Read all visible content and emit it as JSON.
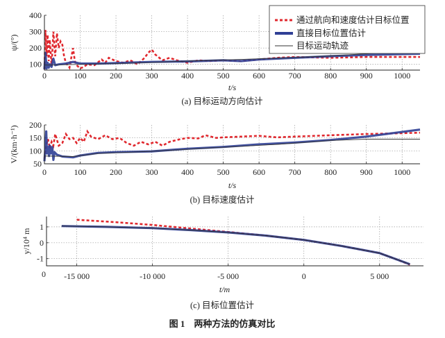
{
  "colors": {
    "red": "#e0282e",
    "blue": "#2f3f95",
    "truth": "#333333",
    "grid": "#999999"
  },
  "legend": {
    "position": "top-right",
    "items": [
      "通过航向和速度估计目标位置",
      "直接目标位置估计",
      "目标运动轨迹"
    ]
  },
  "figure_title": "图 1　两种方法的仿真对比",
  "chart_data": [
    {
      "type": "line",
      "caption": "(a) 目标运动方向估计",
      "xlabel": "t/s",
      "ylabel": "ψ/(°)",
      "xlim": [
        0,
        1050
      ],
      "ylim": [
        65,
        400
      ],
      "xticks": [
        0,
        100,
        200,
        300,
        400,
        500,
        600,
        700,
        800,
        900,
        1000
      ],
      "yticks": [
        100,
        200,
        300,
        400
      ],
      "grid": true,
      "series": [
        {
          "name": "通过航向和速度估计目标位置",
          "style": "dashed",
          "x": [
            0,
            3,
            6,
            9,
            12,
            15,
            20,
            25,
            30,
            35,
            40,
            45,
            50,
            55,
            60,
            70,
            80,
            85,
            90,
            100,
            110,
            120,
            140,
            160,
            170,
            180,
            200,
            220,
            240,
            260,
            280,
            290,
            300,
            310,
            330,
            350,
            370,
            400,
            430,
            460,
            500,
            550,
            600,
            650,
            700,
            800,
            900,
            1050
          ],
          "y": [
            70,
            310,
            150,
            280,
            120,
            250,
            90,
            300,
            150,
            290,
            200,
            240,
            220,
            150,
            110,
            80,
            200,
            120,
            95,
            75,
            85,
            100,
            95,
            130,
            110,
            140,
            120,
            110,
            125,
            100,
            140,
            170,
            190,
            160,
            125,
            140,
            125,
            110,
            125,
            120,
            125,
            120,
            130,
            140,
            145,
            140,
            145,
            145
          ]
        },
        {
          "name": "直接目标位置估计",
          "style": "solid",
          "x": [
            0,
            3,
            6,
            9,
            12,
            15,
            20,
            25,
            30,
            40,
            60,
            80,
            100,
            150,
            200,
            300,
            400,
            500,
            550,
            600,
            700,
            800,
            900,
            1050
          ],
          "y": [
            70,
            170,
            75,
            110,
            80,
            100,
            85,
            135,
            95,
            100,
            105,
            115,
            105,
            105,
            108,
            115,
            118,
            125,
            120,
            130,
            140,
            150,
            158,
            165
          ]
        },
        {
          "name": "目标运动轨迹",
          "style": "thin",
          "x": [
            0,
            100,
            200,
            300,
            400,
            500,
            600,
            700,
            800,
            900,
            1050
          ],
          "y": [
            95,
            100,
            105,
            112,
            120,
            127,
            134,
            142,
            152,
            165,
            185
          ]
        }
      ]
    },
    {
      "type": "line",
      "caption": "(b) 目标速度估计",
      "xlabel": "t/s",
      "ylabel": "V/(km·h⁻¹)",
      "xlim": [
        0,
        1050
      ],
      "ylim": [
        50,
        200
      ],
      "xticks": [
        0,
        100,
        200,
        300,
        400,
        500,
        600,
        700,
        800,
        900,
        1000
      ],
      "yticks": [
        50,
        100,
        150,
        200
      ],
      "grid": true,
      "series": [
        {
          "name": "通过航向和速度估计目标位置",
          "style": "dashed",
          "x": [
            0,
            5,
            10,
            15,
            20,
            25,
            30,
            40,
            50,
            60,
            70,
            80,
            90,
            100,
            110,
            120,
            130,
            150,
            170,
            190,
            210,
            230,
            250,
            270,
            290,
            310,
            330,
            350,
            380,
            400,
            430,
            450,
            480,
            500,
            550,
            600,
            650,
            700,
            800,
            900,
            1000,
            1050
          ],
          "y": [
            70,
            120,
            145,
            110,
            135,
            120,
            165,
            120,
            130,
            165,
            145,
            150,
            130,
            150,
            135,
            175,
            155,
            145,
            160,
            145,
            150,
            130,
            120,
            135,
            125,
            135,
            120,
            135,
            145,
            150,
            148,
            160,
            150,
            152,
            155,
            158,
            152,
            155,
            160,
            165,
            168,
            170
          ]
        },
        {
          "name": "直接目标位置估计",
          "style": "solid",
          "x": [
            0,
            3,
            5,
            7,
            10,
            13,
            15,
            18,
            22,
            25,
            28,
            35,
            50,
            80,
            100,
            150,
            200,
            300,
            400,
            500,
            600,
            700,
            800,
            900,
            1050
          ],
          "y": [
            60,
            120,
            175,
            90,
            115,
            80,
            120,
            90,
            115,
            65,
            95,
            85,
            78,
            75,
            82,
            92,
            95,
            98,
            108,
            115,
            125,
            132,
            142,
            155,
            182
          ]
        },
        {
          "name": "目标运动轨迹",
          "style": "thin",
          "x": [
            0,
            80,
            150,
            300,
            450,
            650,
            800,
            900,
            1050
          ],
          "y": [
            80,
            78,
            90,
            98,
            110,
            125,
            140,
            145,
            145
          ]
        }
      ]
    },
    {
      "type": "line",
      "caption": "(c) 目标位置估计",
      "xlabel": "t/m",
      "ylabel": "y/10⁴ m",
      "xlim": [
        -17000,
        7900
      ],
      "ylim": [
        -1.45,
        1.65
      ],
      "xticks": [
        -15000,
        -10000,
        -5000,
        0,
        5000
      ],
      "xtick_labels": [
        "-15 000",
        "-10 000",
        "-5 000",
        "0",
        "5 000"
      ],
      "yticks": [
        -1,
        0,
        1
      ],
      "origin_label": "0",
      "grid": true,
      "series": [
        {
          "name": "通过航向和速度估计目标位置",
          "style": "dashed",
          "x": [
            -15000,
            -12500,
            -10000,
            -7500,
            -5000,
            -2500,
            0,
            2500,
            5000,
            6000,
            7000
          ],
          "y": [
            1.45,
            1.3,
            1.12,
            0.9,
            0.68,
            0.45,
            0.18,
            -0.2,
            -0.65,
            -1.0,
            -1.38
          ]
        },
        {
          "name": "直接目标位置估计",
          "style": "solid",
          "x": [
            -16000,
            -13000,
            -10000,
            -7500,
            -5000,
            -2500,
            0,
            2500,
            5000,
            6000,
            7000
          ],
          "y": [
            1.05,
            1.0,
            0.92,
            0.8,
            0.65,
            0.45,
            0.18,
            -0.2,
            -0.65,
            -1.0,
            -1.35
          ]
        },
        {
          "name": "目标运动轨迹",
          "style": "thin",
          "x": [
            -16000,
            -13000,
            -10000,
            -7500,
            -5000,
            -2500,
            0,
            2500,
            5000,
            6000,
            7000
          ],
          "y": [
            1.05,
            1.0,
            0.92,
            0.8,
            0.65,
            0.45,
            0.18,
            -0.2,
            -0.65,
            -1.0,
            -1.35
          ]
        }
      ]
    }
  ]
}
